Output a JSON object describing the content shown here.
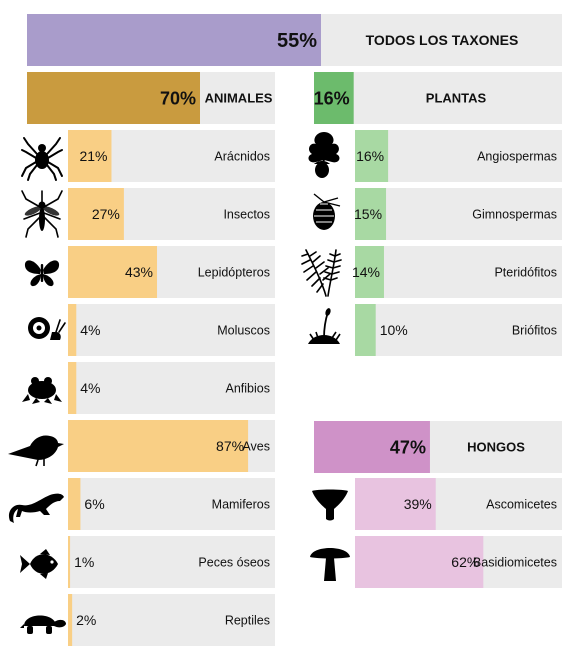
{
  "chart_data": {
    "type": "bar",
    "unit": "%",
    "xlim": [
      0,
      100
    ],
    "total": {
      "label": "TODOS LOS TAXONES",
      "value": 55,
      "color": "#a99ccb"
    },
    "groups": [
      {
        "id": "animals",
        "label": "ANIMALES",
        "value": 70,
        "color": "#c99b3f",
        "item_color": "#f9cf85",
        "items": [
          {
            "label": "Arácnidos",
            "value": 21,
            "icon": "spider-icon"
          },
          {
            "label": "Insectos",
            "value": 27,
            "icon": "mosquito-icon"
          },
          {
            "label": "Lepidópteros",
            "value": 43,
            "icon": "butterfly-icon"
          },
          {
            "label": "Moluscos",
            "value": 4,
            "icon": "snail-icon"
          },
          {
            "label": "Anfibios",
            "value": 4,
            "icon": "frog-icon"
          },
          {
            "label": "Aves",
            "value": 87,
            "icon": "bird-icon"
          },
          {
            "label": "Mamiferos",
            "value": 6,
            "icon": "weasel-icon"
          },
          {
            "label": "Peces óseos",
            "value": 1,
            "icon": "fish-icon"
          },
          {
            "label": "Reptiles",
            "value": 2,
            "icon": "tortoise-icon"
          }
        ]
      },
      {
        "id": "plants",
        "label": "PLANTAS",
        "value": 16,
        "color": "#6cbb6c",
        "item_color": "#a8d9a3",
        "items": [
          {
            "label": "Angiospermas",
            "value": 16,
            "icon": "oak-leaf-acorn-icon"
          },
          {
            "label": "Gimnospermas",
            "value": 15,
            "icon": "pine-cone-icon"
          },
          {
            "label": "Pteridófitos",
            "value": 14,
            "icon": "fern-icon"
          },
          {
            "label": "Briófitos",
            "value": 10,
            "icon": "moss-icon"
          }
        ]
      },
      {
        "id": "fungi",
        "label": "HONGOS",
        "value": 47,
        "color": "#cf92c8",
        "item_color": "#e8c3e0",
        "items": [
          {
            "label": "Ascomicetes",
            "value": 39,
            "icon": "cup-fungus-icon"
          },
          {
            "label": "Basidiomicetes",
            "value": 62,
            "icon": "mushroom-icon"
          }
        ]
      }
    ],
    "track_color": "#ebebeb"
  }
}
